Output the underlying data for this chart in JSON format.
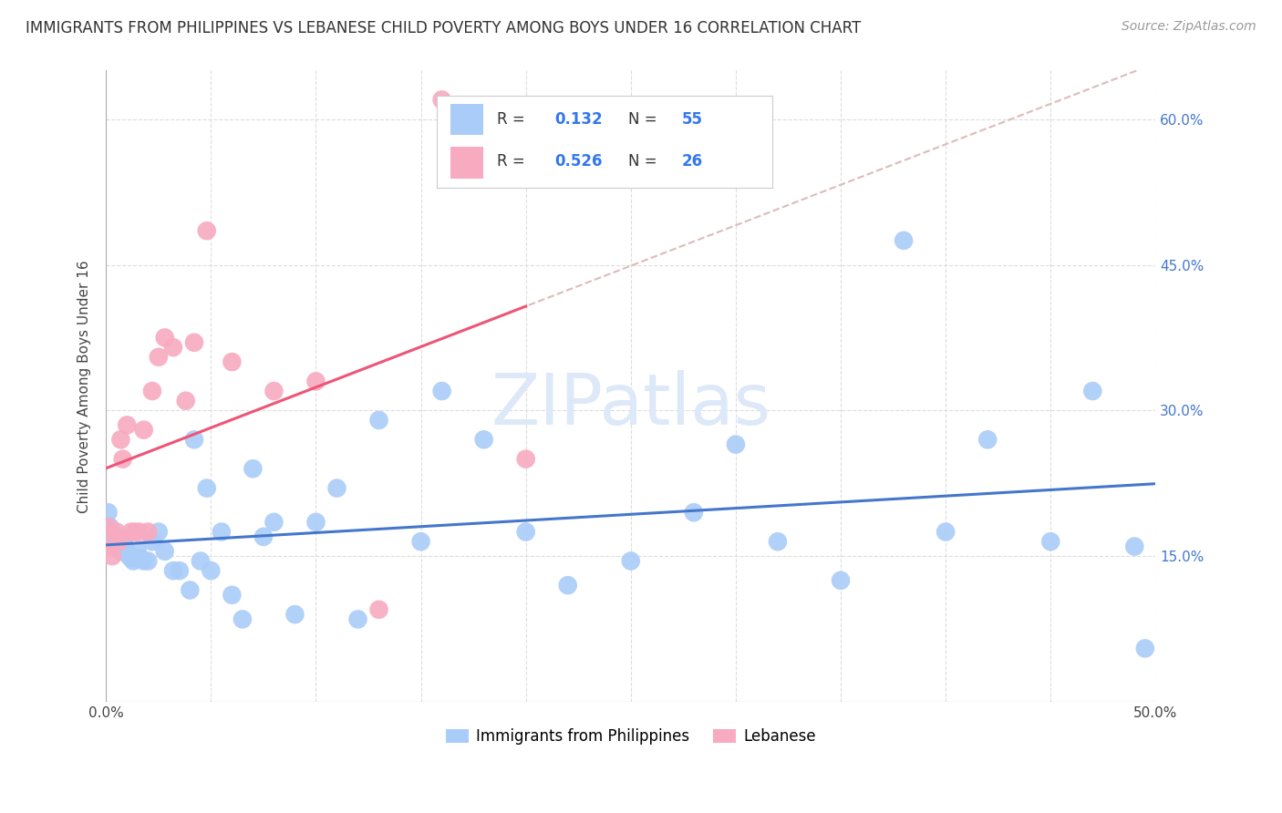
{
  "title": "IMMIGRANTS FROM PHILIPPINES VS LEBANESE CHILD POVERTY AMONG BOYS UNDER 16 CORRELATION CHART",
  "source": "Source: ZipAtlas.com",
  "ylabel": "Child Poverty Among Boys Under 16",
  "xlim": [
    0.0,
    0.5
  ],
  "ylim": [
    0.0,
    0.65
  ],
  "ytick_positions": [
    0.0,
    0.15,
    0.3,
    0.45,
    0.6
  ],
  "ytick_labels_right": [
    "",
    "15.0%",
    "30.0%",
    "45.0%",
    "60.0%"
  ],
  "xtick_positions": [
    0.0,
    0.05,
    0.1,
    0.15,
    0.2,
    0.25,
    0.3,
    0.35,
    0.4,
    0.45,
    0.5
  ],
  "xtick_labels": [
    "0.0%",
    "",
    "",
    "",
    "",
    "",
    "",
    "",
    "",
    "",
    "50.0%"
  ],
  "R_phil": 0.132,
  "N_phil": 55,
  "R_leb": 0.526,
  "N_leb": 26,
  "color_phil": "#aaccf8",
  "color_leb": "#f8aac0",
  "trendline_phil": "#4477cc",
  "trendline_leb": "#ee5577",
  "dashed_line_color": "#ddbbbb",
  "watermark": "ZIPatlas",
  "phil_x": [
    0.001,
    0.002,
    0.003,
    0.004,
    0.005,
    0.006,
    0.007,
    0.008,
    0.009,
    0.01,
    0.011,
    0.012,
    0.013,
    0.015,
    0.016,
    0.018,
    0.02,
    0.022,
    0.025,
    0.028,
    0.032,
    0.035,
    0.04,
    0.042,
    0.045,
    0.048,
    0.05,
    0.055,
    0.06,
    0.065,
    0.07,
    0.075,
    0.08,
    0.09,
    0.1,
    0.11,
    0.12,
    0.13,
    0.15,
    0.16,
    0.18,
    0.2,
    0.22,
    0.25,
    0.28,
    0.3,
    0.32,
    0.35,
    0.38,
    0.4,
    0.42,
    0.45,
    0.47,
    0.49,
    0.495
  ],
  "phil_y": [
    0.195,
    0.18,
    0.175,
    0.165,
    0.165,
    0.165,
    0.155,
    0.165,
    0.16,
    0.155,
    0.15,
    0.148,
    0.145,
    0.155,
    0.148,
    0.145,
    0.145,
    0.165,
    0.175,
    0.155,
    0.135,
    0.135,
    0.115,
    0.27,
    0.145,
    0.22,
    0.135,
    0.175,
    0.11,
    0.085,
    0.24,
    0.17,
    0.185,
    0.09,
    0.185,
    0.22,
    0.085,
    0.29,
    0.165,
    0.32,
    0.27,
    0.175,
    0.12,
    0.145,
    0.195,
    0.265,
    0.165,
    0.125,
    0.475,
    0.175,
    0.27,
    0.165,
    0.32,
    0.16,
    0.055
  ],
  "leb_x": [
    0.001,
    0.002,
    0.003,
    0.005,
    0.006,
    0.007,
    0.008,
    0.01,
    0.012,
    0.014,
    0.016,
    0.018,
    0.02,
    0.022,
    0.025,
    0.028,
    0.032,
    0.038,
    0.042,
    0.048,
    0.06,
    0.08,
    0.1,
    0.13,
    0.16,
    0.2
  ],
  "leb_y": [
    0.18,
    0.16,
    0.15,
    0.175,
    0.165,
    0.27,
    0.25,
    0.285,
    0.175,
    0.175,
    0.175,
    0.28,
    0.175,
    0.32,
    0.355,
    0.375,
    0.365,
    0.31,
    0.37,
    0.485,
    0.35,
    0.32,
    0.33,
    0.095,
    0.62,
    0.25
  ]
}
